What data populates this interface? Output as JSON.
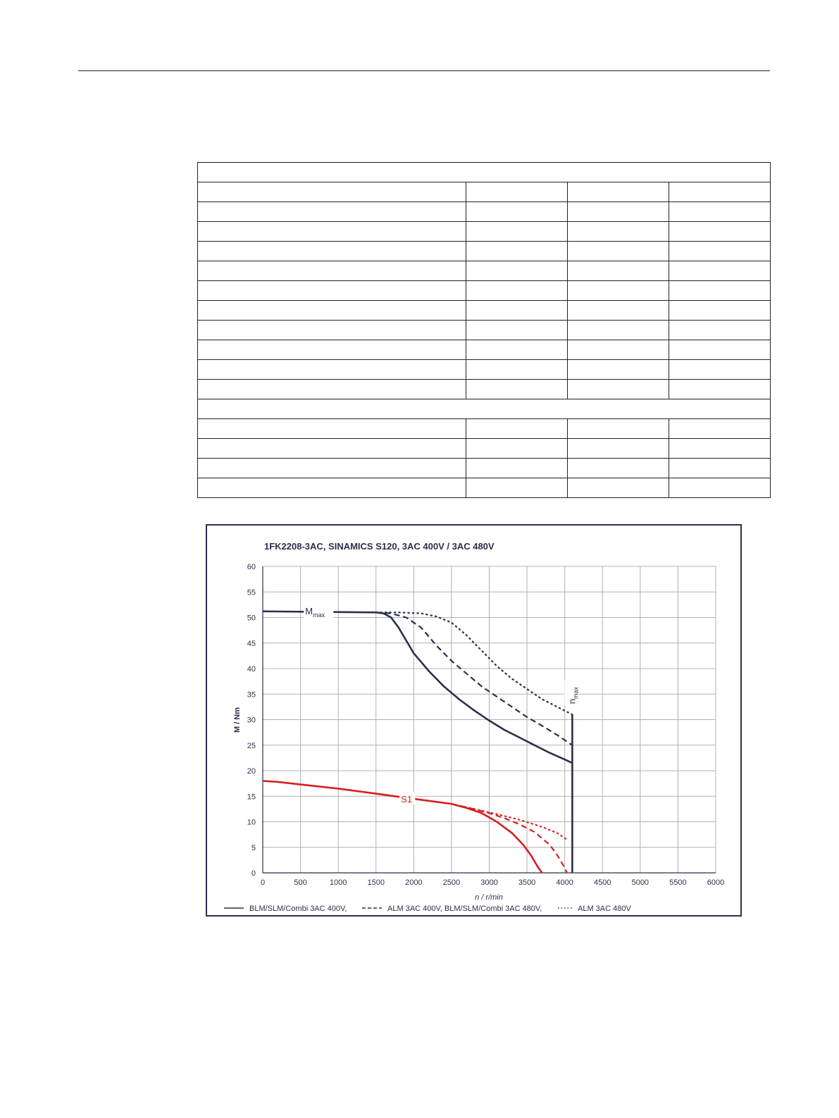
{
  "table": {
    "rows": [
      {
        "kind": "section",
        "cells": [
          ""
        ]
      },
      {
        "kind": "row",
        "cells": [
          "",
          "",
          "",
          ""
        ]
      },
      {
        "kind": "row",
        "cells": [
          "",
          "",
          "",
          ""
        ]
      },
      {
        "kind": "row",
        "cells": [
          "",
          "",
          "",
          ""
        ]
      },
      {
        "kind": "row",
        "cells": [
          "",
          "",
          "",
          ""
        ]
      },
      {
        "kind": "row",
        "cells": [
          "",
          "",
          "",
          ""
        ]
      },
      {
        "kind": "row",
        "cells": [
          "",
          "",
          "",
          ""
        ]
      },
      {
        "kind": "row",
        "cells": [
          "",
          "",
          "",
          ""
        ]
      },
      {
        "kind": "row",
        "cells": [
          "",
          "",
          "",
          ""
        ]
      },
      {
        "kind": "row",
        "cells": [
          "",
          "",
          "",
          ""
        ]
      },
      {
        "kind": "row",
        "cells": [
          "",
          "",
          "",
          ""
        ]
      },
      {
        "kind": "row",
        "cells": [
          "",
          "",
          "",
          ""
        ]
      },
      {
        "kind": "section",
        "cells": [
          ""
        ]
      },
      {
        "kind": "row",
        "cells": [
          "",
          "",
          "",
          ""
        ]
      },
      {
        "kind": "row",
        "cells": [
          "",
          "",
          "",
          ""
        ]
      },
      {
        "kind": "row",
        "cells": [
          "",
          "",
          "",
          ""
        ]
      },
      {
        "kind": "row",
        "cells": [
          "",
          "",
          "",
          ""
        ]
      }
    ]
  },
  "chart_data": {
    "type": "line",
    "title": "1FK2208-3AC,  SINAMICS S120,  3AC 400V / 3AC 480V",
    "xlabel": "n / r/min",
    "ylabel": "M / Nm",
    "xlim": [
      0,
      6000
    ],
    "ylim": [
      0,
      60
    ],
    "xticks": [
      0,
      500,
      1000,
      1500,
      2000,
      2500,
      3000,
      3500,
      4000,
      4500,
      5000,
      5500,
      6000
    ],
    "yticks": [
      0,
      5,
      10,
      15,
      20,
      25,
      30,
      35,
      40,
      45,
      50,
      55,
      60
    ],
    "grid": true,
    "legend_position": "bottom",
    "colors": {
      "mmax": "#2b2f4a",
      "s1": "#d42020",
      "grid": "#b0b0b0"
    },
    "annotations": [
      {
        "text": "M",
        "sub": "max",
        "x": 600,
        "y": 51.2
      },
      {
        "text": "n",
        "sub": "max",
        "x": 4100,
        "y": 35
      },
      {
        "text": "S1",
        "x": 1850,
        "y": 14.5
      }
    ],
    "nmax_line": {
      "x": 4100,
      "y_from": 0,
      "y_to": 31
    },
    "series": [
      {
        "name": "BLM/SLM/Combi 3AC 400V,",
        "group": "Mmax",
        "style": "solid",
        "x": [
          0,
          1500,
          1600,
          1700,
          1800,
          1900,
          2000,
          2200,
          2400,
          2600,
          2800,
          3000,
          3200,
          3400,
          3600,
          3800,
          4000,
          4100
        ],
        "y": [
          51.2,
          51.0,
          50.8,
          50.0,
          48.0,
          45.5,
          43.0,
          39.5,
          36.5,
          34.0,
          31.8,
          29.8,
          28.0,
          26.5,
          25.0,
          23.5,
          22.2,
          21.5
        ]
      },
      {
        "name": "ALM 3AC 400V, BLM/SLM/Combi 3AC 480V,",
        "group": "Mmax",
        "style": "dashed",
        "x": [
          1500,
          1700,
          1900,
          2100,
          2300,
          2500,
          2700,
          2900,
          3100,
          3300,
          3500,
          3700,
          3900,
          4100
        ],
        "y": [
          51.0,
          50.8,
          50.0,
          48.0,
          44.5,
          41.5,
          39.0,
          36.5,
          34.5,
          32.5,
          30.5,
          28.8,
          27.0,
          25.0
        ]
      },
      {
        "name": "ALM 3AC 480V",
        "group": "Mmax",
        "style": "dotted",
        "x": [
          1500,
          1800,
          2100,
          2300,
          2500,
          2700,
          2900,
          3100,
          3300,
          3500,
          3700,
          3900,
          4100
        ],
        "y": [
          51.0,
          51.0,
          50.8,
          50.2,
          49.0,
          46.5,
          43.5,
          40.5,
          38.0,
          36.0,
          34.0,
          32.5,
          31.0
        ]
      },
      {
        "name": "S1 BLM/SLM/Combi 3AC 400V",
        "group": "S1",
        "style": "solid",
        "x": [
          0,
          200,
          500,
          1000,
          1500,
          2000,
          2500,
          2700,
          2900,
          3100,
          3300,
          3450,
          3550,
          3650,
          3700
        ],
        "y": [
          18.0,
          17.8,
          17.3,
          16.5,
          15.5,
          14.5,
          13.5,
          12.7,
          11.7,
          10.0,
          7.8,
          5.5,
          3.5,
          1.0,
          0
        ]
      },
      {
        "name": "S1 ALM 3AC 400V, BLM/SLM/Combi 3AC 480V",
        "group": "S1",
        "style": "dashed",
        "x": [
          2500,
          2800,
          3000,
          3200,
          3400,
          3600,
          3800,
          3900,
          3980,
          4030
        ],
        "y": [
          13.5,
          12.5,
          11.7,
          10.7,
          9.5,
          8.0,
          5.5,
          3.5,
          1.5,
          0
        ]
      },
      {
        "name": "S1 ALM 3AC 480V",
        "group": "S1",
        "style": "dotted",
        "x": [
          2500,
          2800,
          3100,
          3400,
          3700,
          3900,
          4050
        ],
        "y": [
          13.5,
          12.5,
          11.5,
          10.4,
          9.0,
          7.8,
          6.3
        ]
      }
    ],
    "legend": [
      {
        "style": "solid",
        "label": "BLM/SLM/Combi 3AC 400V,"
      },
      {
        "style": "dashed",
        "label": "ALM 3AC 400V, BLM/SLM/Combi 3AC 480V,"
      },
      {
        "style": "dotted",
        "label": "ALM 3AC 480V"
      }
    ]
  }
}
